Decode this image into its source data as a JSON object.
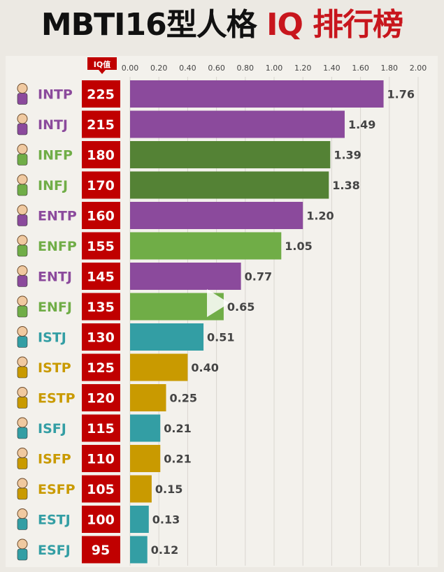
{
  "title": {
    "part1": "MBTI16型人格",
    "part2": "IQ 排行榜"
  },
  "iq_header": "IQ值",
  "colors": {
    "purple": "#8b4a9c",
    "dark_green": "#548235",
    "light_green": "#70ad47",
    "teal": "#339ea4",
    "gold": "#c99a00",
    "red": "#c00000"
  },
  "chart_data": {
    "type": "bar",
    "orientation": "horizontal",
    "xlim": [
      0,
      2.0
    ],
    "x_ticks": [
      "0.00",
      "0.20",
      "0.40",
      "0.60",
      "0.80",
      "1.00",
      "1.20",
      "1.40",
      "1.60",
      "1.80",
      "2.00"
    ],
    "grid": true,
    "categories": [
      "INTP",
      "INTJ",
      "INFP",
      "INFJ",
      "ENTP",
      "ENFP",
      "ENTJ",
      "ENFJ",
      "ISTJ",
      "ISTP",
      "ESTP",
      "ISFJ",
      "ISFP",
      "ESFP",
      "ESTJ",
      "ESFJ"
    ],
    "iq": [
      225,
      215,
      180,
      170,
      160,
      155,
      145,
      135,
      130,
      125,
      120,
      115,
      110,
      105,
      100,
      95
    ],
    "values": [
      1.76,
      1.49,
      1.39,
      1.38,
      1.2,
      1.05,
      0.77,
      0.65,
      0.51,
      0.4,
      0.25,
      0.21,
      0.21,
      0.15,
      0.13,
      0.12
    ],
    "value_labels": [
      "1.76",
      "1.49",
      "1.39",
      "1.38",
      "1.20",
      "1.05",
      "0.77",
      "0.65",
      "0.51",
      "0.40",
      "0.25",
      "0.21",
      "0.21",
      "0.15",
      "0.13",
      "0.12"
    ],
    "bar_colors": [
      "purple",
      "purple",
      "dark_green",
      "dark_green",
      "purple",
      "light_green",
      "purple",
      "light_green",
      "teal",
      "gold",
      "gold",
      "teal",
      "gold",
      "gold",
      "teal",
      "teal"
    ],
    "label_colors": [
      "purple",
      "purple",
      "light_green",
      "light_green",
      "purple",
      "light_green",
      "purple",
      "light_green",
      "teal",
      "gold",
      "gold",
      "teal",
      "gold",
      "gold",
      "teal",
      "teal"
    ]
  }
}
